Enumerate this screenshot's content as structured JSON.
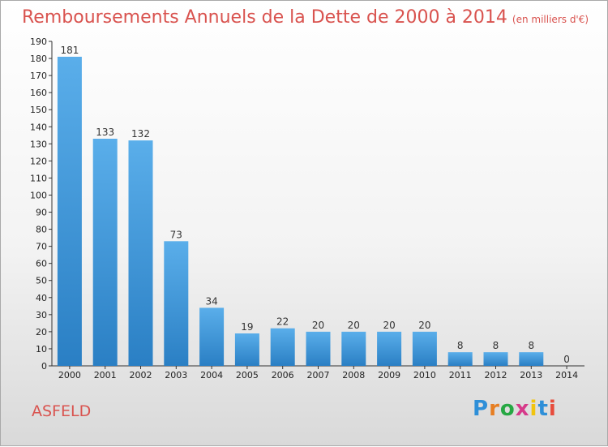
{
  "title": "Remboursements Annuels de la Dette de 2000 à 2014",
  "subtitle": "(en milliers d'€)",
  "commune": "ASFELD",
  "logo": {
    "letters": [
      "P",
      "r",
      "o",
      "x",
      "i",
      "t",
      "i"
    ],
    "colors": [
      "#2e8fd8",
      "#e67e22",
      "#27a844",
      "#d63a8a",
      "#f1c40f",
      "#2e8fd8",
      "#e74c3c"
    ]
  },
  "chart_data": {
    "type": "bar",
    "categories": [
      "2000",
      "2001",
      "2002",
      "2003",
      "2004",
      "2005",
      "2006",
      "2007",
      "2008",
      "2009",
      "2010",
      "2011",
      "2012",
      "2013",
      "2014"
    ],
    "values": [
      181,
      133,
      132,
      73,
      34,
      19,
      22,
      20,
      20,
      20,
      20,
      8,
      8,
      8,
      0
    ],
    "title": "Remboursements Annuels de la Dette de 2000 à 2014",
    "ylim": [
      0,
      190
    ],
    "yticks": [
      0,
      10,
      20,
      30,
      40,
      50,
      60,
      70,
      80,
      90,
      100,
      110,
      120,
      130,
      140,
      150,
      160,
      170,
      180,
      190
    ],
    "grid": false,
    "bar_color": "#3d99dd"
  }
}
